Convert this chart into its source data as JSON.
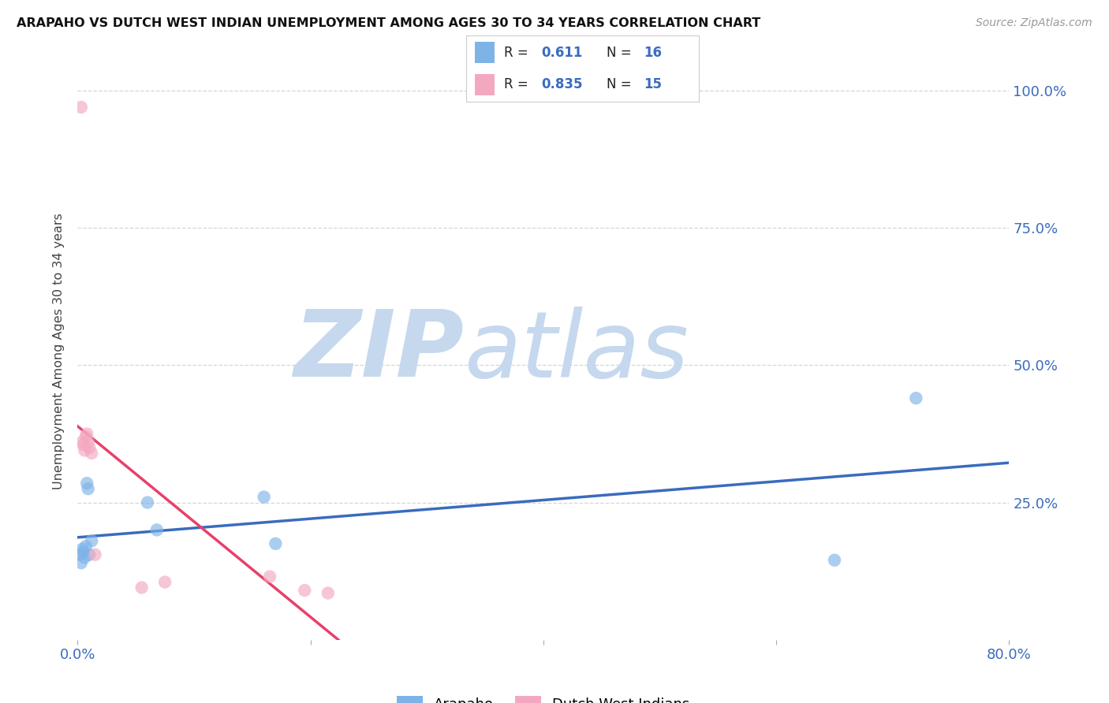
{
  "title": "ARAPAHO VS DUTCH WEST INDIAN UNEMPLOYMENT AMONG AGES 30 TO 34 YEARS CORRELATION CHART",
  "source": "Source: ZipAtlas.com",
  "ylabel": "Unemployment Among Ages 30 to 34 years",
  "xlim": [
    0.0,
    0.8
  ],
  "ylim": [
    0.0,
    1.05
  ],
  "xticks": [
    0.0,
    0.2,
    0.4,
    0.6,
    0.8
  ],
  "yticks": [
    0.25,
    0.5,
    0.75,
    1.0
  ],
  "xticklabels": [
    "0.0%",
    "",
    "",
    "",
    "80.0%"
  ],
  "yticklabels_right": [
    "25.0%",
    "50.0%",
    "75.0%",
    "100.0%"
  ],
  "arapaho_x": [
    0.002,
    0.003,
    0.004,
    0.005,
    0.006,
    0.007,
    0.008,
    0.009,
    0.01,
    0.012,
    0.06,
    0.068,
    0.16,
    0.17,
    0.65,
    0.72
  ],
  "arapaho_y": [
    0.155,
    0.14,
    0.165,
    0.16,
    0.15,
    0.17,
    0.285,
    0.275,
    0.155,
    0.18,
    0.25,
    0.2,
    0.26,
    0.175,
    0.145,
    0.44
  ],
  "dutch_x": [
    0.003,
    0.004,
    0.005,
    0.006,
    0.007,
    0.008,
    0.009,
    0.01,
    0.012,
    0.015,
    0.055,
    0.075,
    0.165,
    0.195,
    0.215
  ],
  "dutch_y": [
    0.97,
    0.36,
    0.355,
    0.345,
    0.37,
    0.375,
    0.36,
    0.35,
    0.34,
    0.155,
    0.095,
    0.105,
    0.115,
    0.09,
    0.085
  ],
  "arapaho_color": "#7EB3E8",
  "dutch_color": "#F4A8C0",
  "arapaho_line_color": "#3A6BBF",
  "dutch_line_color": "#E8406A",
  "arapaho_R": "0.611",
  "arapaho_N": "16",
  "dutch_R": "0.835",
  "dutch_N": "15",
  "watermark_zip": "ZIP",
  "watermark_atlas": "atlas",
  "watermark_color_zip": "#C5D8EE",
  "watermark_color_atlas": "#C5D8EE",
  "background_color": "#ffffff",
  "grid_color": "#CCCCCC",
  "tick_label_color": "#3A6BBF"
}
